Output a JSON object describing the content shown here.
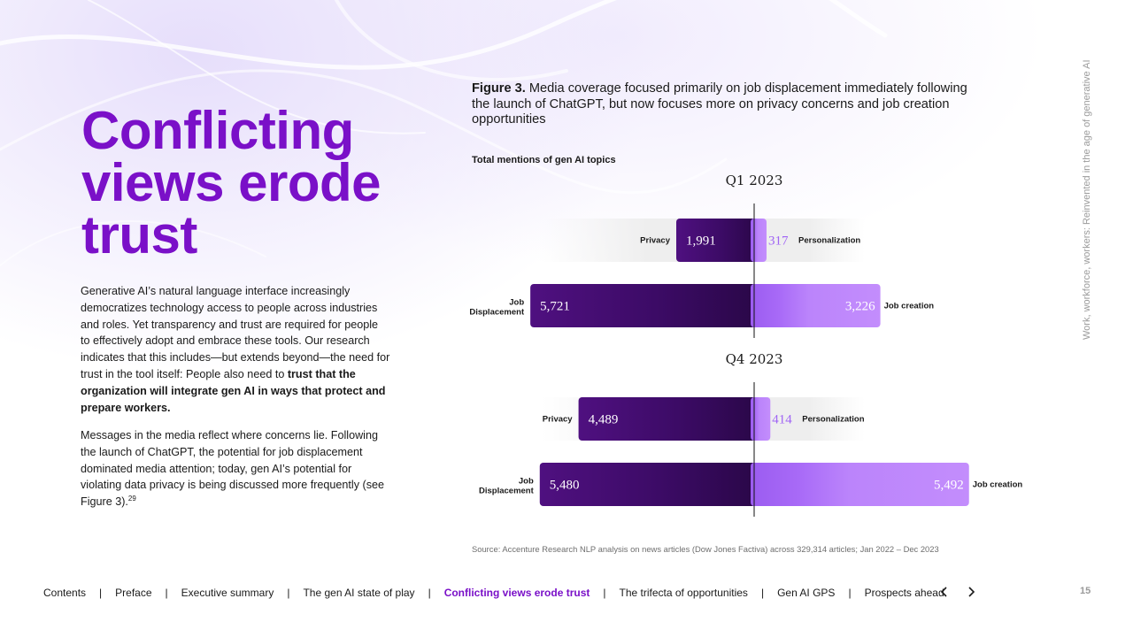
{
  "page": {
    "title_lines": [
      "Conflicting",
      "views erode",
      "trust"
    ],
    "paragraph1": {
      "text": "Generative AI’s natural language interface increasingly democratizes technology access to people across industries and roles. Yet transparency and trust are required for people to effectively adopt and embrace these tools. Our research indicates that this includes—but extends beyond—the need for trust in the tool itself: People also need to ",
      "bold": "trust that the organization will integrate gen AI in ways that protect and prepare workers."
    },
    "paragraph2": {
      "text": "Messages in the media reflect where concerns lie. Following the launch of ChatGPT, the potential for job displacement dominated media attention; today, gen AI’s potential for violating data privacy is being discussed more frequently (see Figure 3).",
      "footnote": "29"
    },
    "side_text": "Work, workforce, workers: Reinvented in the age of generative AI",
    "page_number": "15"
  },
  "figure": {
    "label": "Figure 3.",
    "caption": "Media coverage focused primarily on job displacement immediately following the launch of ChatGPT, but now focuses more on privacy concerns and job creation opportunities",
    "subtitle": "Total mentions of gen AI topics",
    "source": "Source: Accenture Research NLP analysis on news articles (Dow Jones Factiva) across 329,314 articles; Jan 2022 – Dec 2023"
  },
  "chart_data": {
    "type": "bar",
    "orientation": "horizontal-diverging",
    "title": "Total mentions of gen AI topics",
    "panels": [
      {
        "period": "Q1 2023",
        "rows": [
          {
            "left_label": "Privacy",
            "left_value": 1991,
            "left_display": "1,991",
            "right_label": "Personalization",
            "right_value": 317,
            "right_display": "317"
          },
          {
            "left_label": "Job Displacement",
            "left_value": 5721,
            "left_display": "5,721",
            "right_label": "Job creation",
            "right_value": 3226,
            "right_display": "3,226"
          }
        ]
      },
      {
        "period": "Q4 2023",
        "rows": [
          {
            "left_label": "Privacy",
            "left_value": 4489,
            "left_display": "4,489",
            "right_label": "Personalization",
            "right_value": 414,
            "right_display": "414"
          },
          {
            "left_label": "Job Displacement",
            "left_value": 5480,
            "left_display": "5,480",
            "right_label": "Job creation",
            "right_value": 5492,
            "right_display": "5,492"
          }
        ]
      }
    ],
    "colors": {
      "left_dark": "#3a0a63",
      "left_mid": "#4f1080",
      "right_mid": "#9b5cf0",
      "right_light": "#c38dfc",
      "small_right_text": "#a064f5",
      "track": "#eeeeee"
    }
  },
  "footer": {
    "items": [
      {
        "label": "Contents",
        "active": false
      },
      {
        "label": "Preface",
        "active": false
      },
      {
        "label": "Executive summary",
        "active": false
      },
      {
        "label": "The gen AI state of play",
        "active": false
      },
      {
        "label": "Conflicting views erode trust",
        "active": true
      },
      {
        "label": "The trifecta of opportunities",
        "active": false
      },
      {
        "label": "Gen AI GPS",
        "active": false
      },
      {
        "label": "Prospects ahead",
        "active": false
      }
    ],
    "separator": "|",
    "prev_icon": "chevron-left-icon",
    "next_icon": "chevron-right-icon"
  }
}
